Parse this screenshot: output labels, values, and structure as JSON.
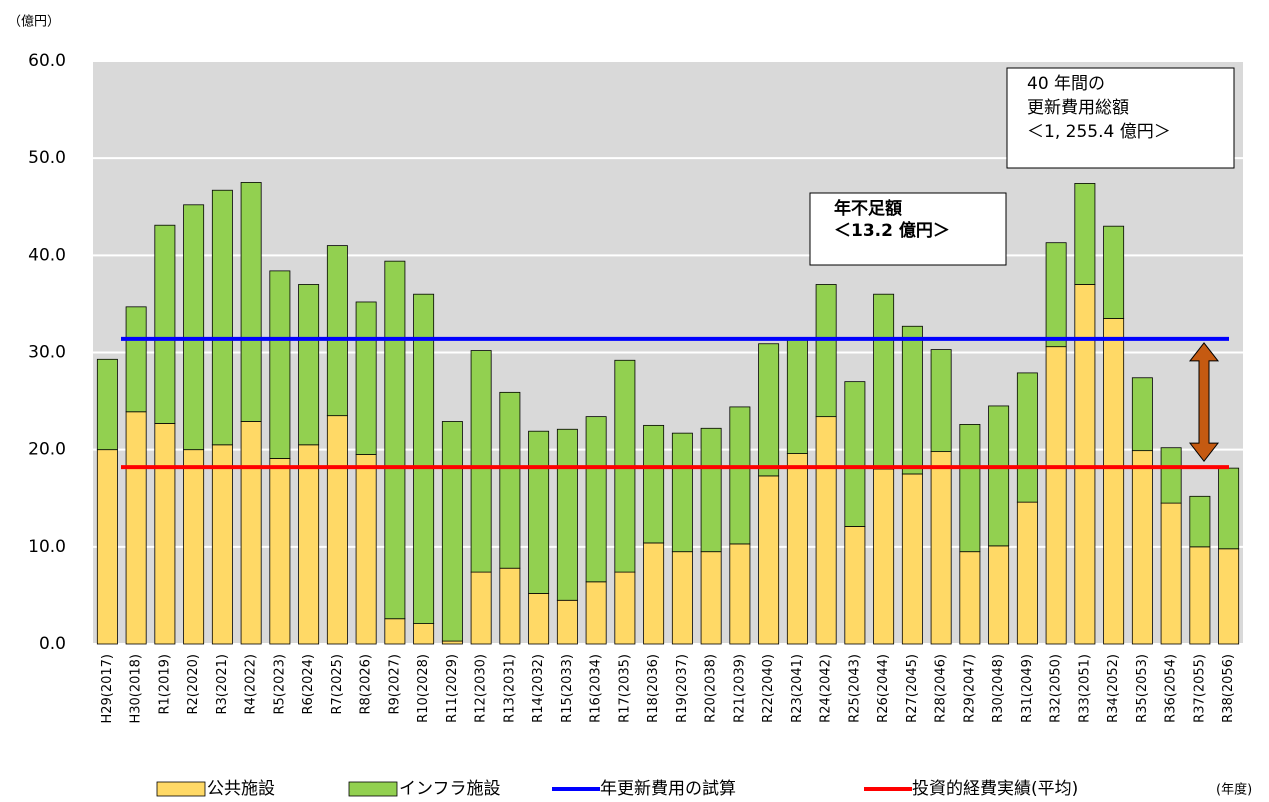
{
  "chart_data": {
    "type": "stacked-bar",
    "y_unit_label": "（億円）",
    "x_unit_label": "(年度)",
    "categories": [
      "H29(2017)",
      "H30(2018)",
      "R1(2019)",
      "R2(2020)",
      "R3(2021)",
      "R4(2022)",
      "R5(2023)",
      "R6(2024)",
      "R7(2025)",
      "R8(2026)",
      "R9(2027)",
      "R10(2028)",
      "R11(2029)",
      "R12(2030)",
      "R13(2031)",
      "R14(2032)",
      "R15(2033)",
      "R16(2034)",
      "R17(2035)",
      "R18(2036)",
      "R19(2037)",
      "R20(2038)",
      "R21(2039)",
      "R22(2040)",
      "R23(2041)",
      "R24(2042)",
      "R25(2043)",
      "R26(2044)",
      "R27(2045)",
      "R28(2046)",
      "R29(2047)",
      "R30(2048)",
      "R31(2049)",
      "R32(2050)",
      "R33(2051)",
      "R34(2052)",
      "R35(2053)",
      "R36(2054)",
      "R37(2055)",
      "R38(2056)"
    ],
    "series": [
      {
        "name": "公共施設",
        "color": "#ffd966",
        "values": [
          20.0,
          23.9,
          22.7,
          20.0,
          20.5,
          22.9,
          19.1,
          20.5,
          23.5,
          19.5,
          2.6,
          2.1,
          0.3,
          7.4,
          7.8,
          5.2,
          4.5,
          6.4,
          7.4,
          10.4,
          9.5,
          9.5,
          10.3,
          17.3,
          19.6,
          23.4,
          12.1,
          18.0,
          17.5,
          19.8,
          9.5,
          10.1,
          14.6,
          30.6,
          37.0,
          33.5,
          19.9,
          14.5,
          10.0,
          9.8
        ]
      },
      {
        "name": "インフラ施設",
        "color": "#92d050",
        "values": [
          9.3,
          10.8,
          20.4,
          25.2,
          26.2,
          24.6,
          19.3,
          16.5,
          17.5,
          15.7,
          36.8,
          33.9,
          22.6,
          22.8,
          18.1,
          16.7,
          17.6,
          17.0,
          21.8,
          12.1,
          12.2,
          12.7,
          14.1,
          13.6,
          11.8,
          13.6,
          14.9,
          18.0,
          15.2,
          10.5,
          13.1,
          14.4,
          13.3,
          10.7,
          10.4,
          9.5,
          7.5,
          5.7,
          5.2,
          8.3
        ]
      }
    ],
    "reference_lines": [
      {
        "name": "年更新費用の試算",
        "color": "#0000ff",
        "value": 31.4
      },
      {
        "name": "投資的経費実績(平均)",
        "color": "#ff0000",
        "value": 18.2
      }
    ],
    "annotations": [
      {
        "lines": [
          "40 年間の",
          "更新費用総額",
          "＜1, 255.4 億円＞"
        ],
        "color": "#000000"
      },
      {
        "lines": [
          "年不足額",
          "＜13.2 億円＞"
        ],
        "color": "#ff0000"
      }
    ],
    "ylim": [
      0,
      60
    ],
    "yticks": [
      {
        "value": 0,
        "label": "0.0"
      },
      {
        "value": 10,
        "label": "10.0"
      },
      {
        "value": 20,
        "label": "20.0"
      },
      {
        "value": 30,
        "label": "30.0"
      },
      {
        "value": 40,
        "label": "40.0"
      },
      {
        "value": 50,
        "label": "50.0"
      },
      {
        "value": 60,
        "label": "60.0"
      }
    ],
    "grid": true
  }
}
